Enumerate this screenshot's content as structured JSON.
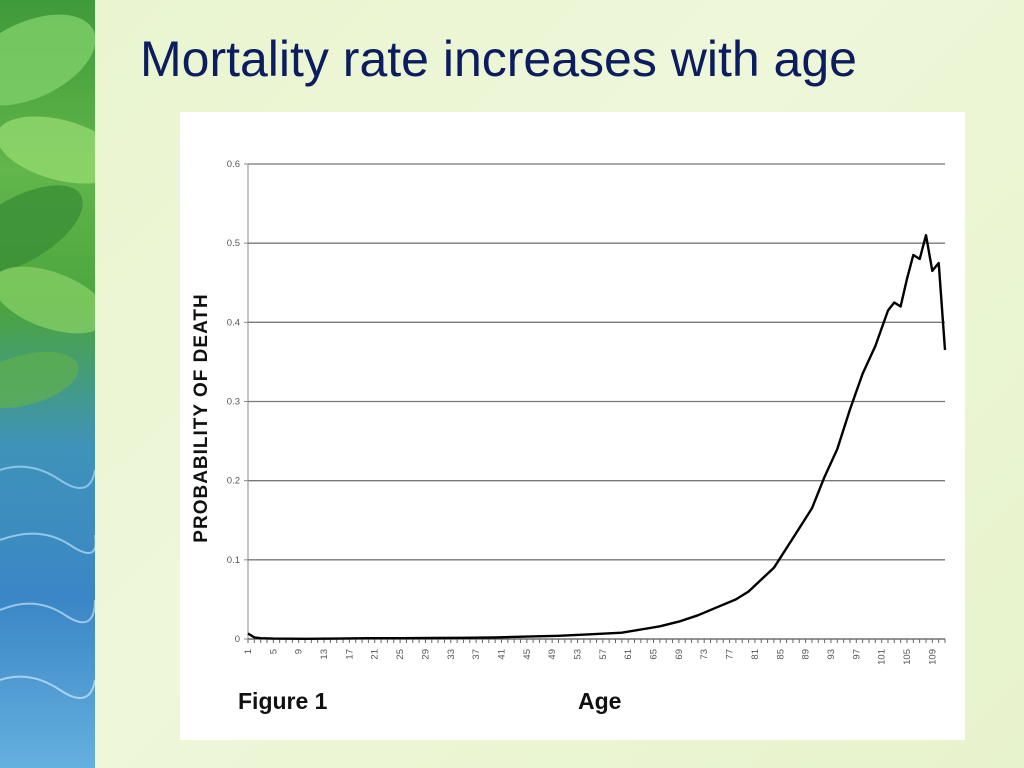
{
  "slide": {
    "title": "Mortality rate increases with age"
  },
  "chart_data": {
    "type": "line",
    "title": "",
    "figure_label": "Figure 1",
    "xlabel": "Age",
    "ylabel": "PROBABILITY OF DEATH",
    "xlim": [
      1,
      111
    ],
    "ylim": [
      0,
      0.6
    ],
    "yticks": [
      0,
      0.1,
      0.2,
      0.3,
      0.4,
      0.5,
      0.6
    ],
    "ytick_labels": [
      "0",
      "0.1",
      "0.2",
      "0.3",
      "0.4",
      "0.5",
      "0.6"
    ],
    "xtick_labels": [
      "1",
      "5",
      "9",
      "13",
      "17",
      "21",
      "25",
      "29",
      "33",
      "37",
      "41",
      "45",
      "49",
      "53",
      "57",
      "61",
      "65",
      "69",
      "73",
      "77",
      "81",
      "85",
      "89",
      "93",
      "97",
      "101",
      "105",
      "109"
    ],
    "grid": "horizontal",
    "series": [
      {
        "color": "#000000",
        "x": [
          1,
          2,
          3,
          5,
          10,
          15,
          20,
          25,
          30,
          35,
          40,
          45,
          50,
          55,
          60,
          63,
          66,
          69,
          72,
          75,
          78,
          80,
          82,
          84,
          86,
          88,
          90,
          92,
          94,
          96,
          98,
          100,
          102,
          103,
          104,
          105,
          106,
          107,
          108,
          109,
          110,
          111
        ],
        "y": [
          0.007,
          0.002,
          0.001,
          0.0005,
          0.0003,
          0.0005,
          0.001,
          0.001,
          0.0012,
          0.0015,
          0.002,
          0.003,
          0.004,
          0.006,
          0.008,
          0.012,
          0.016,
          0.022,
          0.03,
          0.04,
          0.05,
          0.06,
          0.075,
          0.09,
          0.115,
          0.14,
          0.165,
          0.205,
          0.24,
          0.29,
          0.335,
          0.37,
          0.415,
          0.425,
          0.42,
          0.455,
          0.485,
          0.48,
          0.51,
          0.465,
          0.475,
          0.365
        ]
      }
    ]
  },
  "colors": {
    "title": "#0b1d5e",
    "background": "#eaf5d2",
    "gridline": "#777777",
    "line": "#000000"
  }
}
